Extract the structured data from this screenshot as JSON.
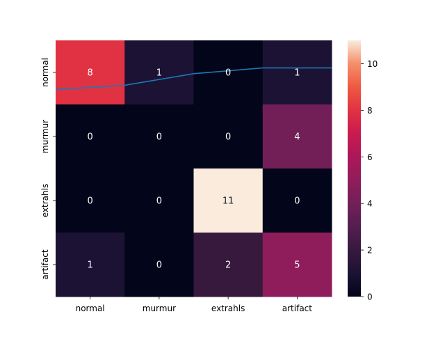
{
  "chart_data": {
    "type": "heatmap",
    "title": "",
    "xlabel": "",
    "ylabel": "",
    "x_categories": [
      "normal",
      "murmur",
      "extrahls",
      "artifact"
    ],
    "y_categories": [
      "normal",
      "murmur",
      "extrahls",
      "artifact"
    ],
    "values": [
      [
        8,
        1,
        0,
        1
      ],
      [
        0,
        0,
        0,
        4
      ],
      [
        0,
        0,
        11,
        0
      ],
      [
        1,
        0,
        2,
        5
      ]
    ],
    "colorbar": {
      "min": 0,
      "max": 11,
      "ticks": [
        0,
        2,
        4,
        6,
        8,
        10
      ],
      "colormap": "rocket"
    },
    "overlay_line": {
      "color": "#1f77b4",
      "y_row_units": [
        0.77,
        0.7,
        0.52,
        0.43
      ]
    },
    "annotation_colors": {
      "light_cell": "#262626",
      "dark_cell": "#ffffff"
    }
  }
}
